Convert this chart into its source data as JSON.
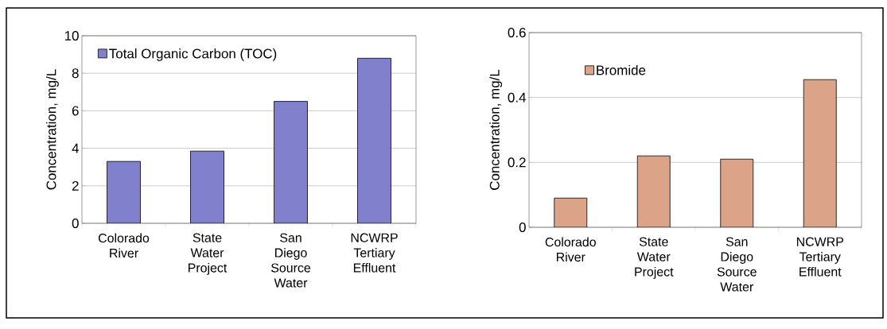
{
  "chart_data": [
    {
      "type": "bar",
      "ylabel": "Concentration, mg/L",
      "categories": [
        "Colorado River",
        "State Water Project",
        "San Diego Source Water",
        "NCWRP Tertiary Effluent"
      ],
      "series": [
        {
          "name": "Total Organic Carbon (TOC)",
          "color": "#8080cc",
          "values": [
            3.3,
            3.85,
            6.5,
            8.8
          ]
        }
      ],
      "ylim": [
        0,
        10
      ],
      "yticks": [
        0,
        2,
        4,
        6,
        8,
        10
      ],
      "grid": "y",
      "legend": "top left"
    },
    {
      "type": "bar",
      "ylabel": "Concentration, mg/L",
      "categories": [
        "Colorado River",
        "State Water Project",
        "San Diego Source Water",
        "NCWRP Tertiary Effluent"
      ],
      "series": [
        {
          "name": "Bromide",
          "color": "#dba488",
          "values": [
            0.09,
            0.22,
            0.21,
            0.455
          ]
        }
      ],
      "ylim": [
        0,
        0.6
      ],
      "yticks": [
        0,
        0.2,
        0.4,
        0.6
      ],
      "grid": "y",
      "legend": "top"
    }
  ]
}
